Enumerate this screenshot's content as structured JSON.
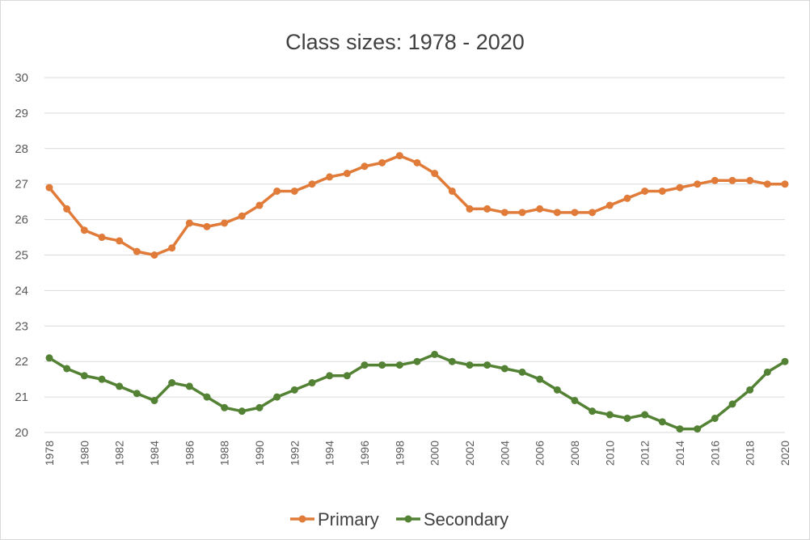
{
  "chart_data": {
    "type": "line",
    "title": "Class sizes: 1978 - 2020",
    "xlabel": "",
    "ylabel": "",
    "x": [
      1978,
      1979,
      1980,
      1981,
      1982,
      1983,
      1984,
      1985,
      1986,
      1987,
      1988,
      1989,
      1990,
      1991,
      1992,
      1993,
      1994,
      1995,
      1996,
      1997,
      1998,
      1999,
      2000,
      2001,
      2002,
      2003,
      2004,
      2005,
      2006,
      2007,
      2008,
      2009,
      2010,
      2011,
      2012,
      2013,
      2014,
      2015,
      2016,
      2017,
      2018,
      2019,
      2020
    ],
    "x_tick_labels": [
      "1978",
      "1980",
      "1982",
      "1984",
      "1986",
      "1988",
      "1990",
      "1992",
      "1994",
      "1996",
      "1998",
      "2000",
      "2002",
      "2004",
      "2006",
      "2008",
      "2010",
      "2012",
      "2014",
      "2016",
      "2018",
      "2020"
    ],
    "y_tick_labels": [
      "20",
      "21",
      "22",
      "23",
      "24",
      "25",
      "26",
      "27",
      "28",
      "29",
      "30"
    ],
    "ylim": [
      20,
      30
    ],
    "grid": true,
    "legend": "bottom",
    "series": [
      {
        "name": "Primary",
        "color": "#e07b39",
        "values": [
          26.9,
          26.3,
          25.7,
          25.5,
          25.4,
          25.1,
          25.0,
          25.2,
          25.9,
          25.8,
          25.9,
          26.1,
          26.4,
          26.8,
          26.8,
          27.0,
          27.2,
          27.3,
          27.5,
          27.6,
          27.8,
          27.6,
          27.3,
          26.8,
          26.3,
          26.3,
          26.2,
          26.2,
          26.3,
          26.2,
          26.2,
          26.2,
          26.4,
          26.6,
          26.8,
          26.8,
          26.9,
          27.0,
          27.1,
          27.1,
          27.1,
          27.0,
          27.0
        ]
      },
      {
        "name": "Secondary",
        "color": "#548235",
        "values": [
          22.1,
          21.8,
          21.6,
          21.5,
          21.3,
          21.1,
          20.9,
          21.4,
          21.3,
          21.0,
          20.7,
          20.6,
          20.7,
          21.0,
          21.2,
          21.4,
          21.6,
          21.6,
          21.9,
          21.9,
          21.9,
          22.0,
          22.2,
          22.0,
          21.9,
          21.9,
          21.8,
          21.7,
          21.5,
          21.2,
          20.9,
          20.6,
          20.5,
          20.4,
          20.5,
          20.3,
          20.1,
          20.1,
          20.4,
          20.8,
          21.2,
          21.7,
          22.0
        ]
      }
    ]
  }
}
